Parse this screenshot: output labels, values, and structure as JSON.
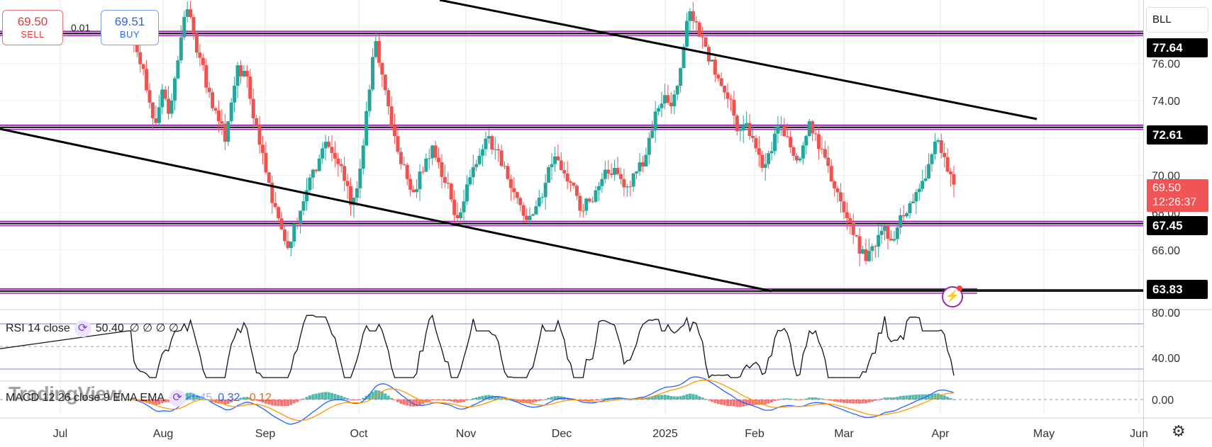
{
  "trade": {
    "sell_price": "69.50",
    "sell_label": "SELL",
    "buy_price": "69.51",
    "buy_label": "BUY",
    "spread": "0.01"
  },
  "symbol": "BLL",
  "levels": [
    {
      "price": 77.64,
      "label": "77.64"
    },
    {
      "price": 72.61,
      "label": "72.61"
    },
    {
      "price": 67.45,
      "label": "67.45"
    },
    {
      "price": 63.83,
      "label": "63.83"
    }
  ],
  "current": {
    "price": "69.50",
    "countdown": "12:26:37"
  },
  "rsi": {
    "label": "RSI 14 close",
    "value": "50.40",
    "placeholders": "∅ ∅ ∅ ∅"
  },
  "macd": {
    "label": "MACD 12 26 close 9 EMA EMA",
    "v1": "0.45",
    "v2": "0.32",
    "v3": "-0.12"
  },
  "watermark": "TradingView",
  "colors": {
    "up": "#26a69a",
    "down": "#ef5350",
    "level": "#9c27b0",
    "macd": "#2962ff",
    "signal": "#ff9800"
  },
  "icons": [
    "cycle-icon",
    "flash-icon",
    "gear-icon"
  ],
  "chart_data": [
    {
      "type": "candlestick",
      "title": "",
      "x": [
        "Jul",
        "Aug",
        "Sep",
        "Oct",
        "Nov",
        "Dec",
        "2025",
        "Feb",
        "Mar",
        "Apr",
        "May",
        "Jun"
      ],
      "ylim": [
        62.8,
        79.4
      ],
      "yticks": [
        66,
        68,
        70,
        72,
        74,
        76
      ],
      "ytick_labels": [
        "66.00",
        "68.00",
        "70.00",
        "72.00",
        "74.00",
        "76.00"
      ],
      "closes": [
        [
          77.8,
          76.6,
          75.7,
          73.9,
          72.8,
          74.6,
          73.3,
          75.2,
          77.4,
          78.9,
          77.6,
          76.3,
          74.7,
          73.6,
          72.9,
          71.8,
          73.9,
          75.9,
          75.6,
          74.1,
          72.7
        ],
        [
          71.2,
          69.6,
          68.3,
          67.1,
          66.1,
          67.4,
          68.1,
          69.2,
          70.3,
          70.9,
          71.8,
          71.2,
          70.6,
          69.7,
          68.4,
          69.3,
          71.6,
          74.6,
          77.2,
          75.4
        ],
        [
          73.7,
          72.1,
          70.6,
          69.8,
          69.1,
          70.2,
          70.9,
          71.6,
          70.7,
          69.6,
          68.7,
          67.7,
          68.6,
          69.9,
          70.6,
          71.4,
          72.1,
          71.4,
          70.5,
          69.8
        ],
        [
          69.1,
          68.4,
          67.6,
          67.9,
          68.8,
          69.6,
          70.6,
          70.8,
          70.1,
          69.6,
          68.9,
          68.1,
          68.6,
          69.2,
          69.8,
          70.1,
          70.4,
          69.8,
          69.4,
          70.1,
          70.7
        ],
        [
          71.1,
          72.4,
          73.6,
          74.3,
          73.7,
          74.8,
          76.9,
          78.8,
          78.2,
          77.4,
          76.1,
          75.4,
          74.8,
          74.1,
          73.2,
          72.4,
          72.8,
          72.0,
          71.1,
          70.6
        ],
        [
          71.3,
          72.6,
          72.1,
          71.5,
          70.8,
          71.6,
          72.9,
          72.2,
          71.4,
          70.5,
          69.3,
          68.6,
          67.7,
          66.8,
          65.8,
          65.4,
          66.2,
          66.8,
          67.3,
          66.5
        ],
        [
          67.2,
          67.8,
          68.5,
          69.1,
          69.7,
          70.6,
          71.8,
          71.2,
          70.2,
          69.5
        ]
      ],
      "ohlc_last_date": "Apr"
    },
    {
      "type": "line",
      "title": "RSI 14 close",
      "yticks": [
        40,
        80
      ],
      "ytick_labels": [
        "40.00",
        "80.00"
      ],
      "bands": [
        30,
        50,
        70
      ],
      "ylim": [
        20,
        82
      ]
    },
    {
      "type": "bar+line",
      "title": "MACD 12 26 close 9 EMA EMA",
      "yticks": [
        0
      ],
      "ytick_labels": [
        "0.00"
      ],
      "ylim": [
        -1.6,
        1.6
      ]
    }
  ]
}
